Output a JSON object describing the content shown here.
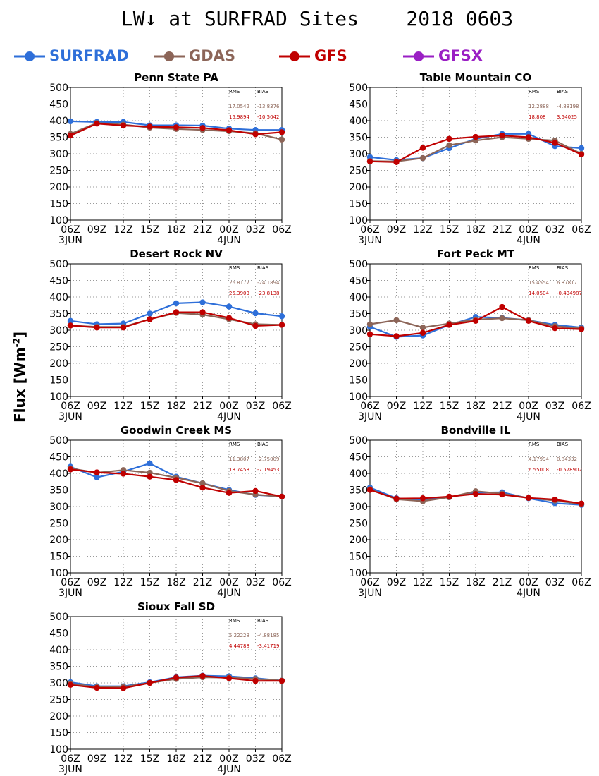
{
  "page": {
    "title": "LW↓ at SURFRAD Sites    2018 0603",
    "ylabel_main": "Flux [Wm",
    "ylabel_sup": "-2",
    "ylabel_end": "]"
  },
  "legend": [
    {
      "name": "SURFRAD",
      "color": "#2e6fd9"
    },
    {
      "name": "GDAS",
      "color": "#8c6558"
    },
    {
      "name": "GFS",
      "color": "#c00000"
    },
    {
      "name": "GFSX",
      "color": "#9a1fc4"
    }
  ],
  "stats_header": {
    "rms": "RMS",
    "bias": "BIAS"
  },
  "chart_data": [
    {
      "type": "line",
      "title": "Penn State PA",
      "x": [
        "06Z",
        "09Z",
        "12Z",
        "15Z",
        "18Z",
        "21Z",
        "00Z",
        "03Z",
        "06Z"
      ],
      "date_labels": [
        "3JUN",
        "4JUN"
      ],
      "ylim": [
        100,
        500
      ],
      "yticks": [
        100,
        150,
        200,
        250,
        300,
        350,
        400,
        450,
        500
      ],
      "grid": true,
      "series": [
        {
          "name": "SURFRAD",
          "values": [
            398,
            396,
            396,
            386,
            386,
            385,
            376,
            372,
            372
          ]
        },
        {
          "name": "GDAS",
          "values": [
            360,
            393,
            388,
            379,
            375,
            372,
            368,
            362,
            343
          ]
        },
        {
          "name": "GFS",
          "values": [
            355,
            391,
            385,
            382,
            380,
            378,
            371,
            359,
            365
          ]
        }
      ],
      "stats": [
        {
          "model": "GDAS",
          "rms": "17.0542",
          "bias": "-13.8376"
        },
        {
          "model": "GFS",
          "rms": "15.9894",
          "bias": "-10.5042"
        }
      ]
    },
    {
      "type": "line",
      "title": "Table Mountain CO",
      "x": [
        "06Z",
        "09Z",
        "12Z",
        "15Z",
        "18Z",
        "21Z",
        "00Z",
        "03Z",
        "06Z"
      ],
      "date_labels": [
        "3JUN",
        "4JUN"
      ],
      "ylim": [
        100,
        500
      ],
      "yticks": [
        100,
        150,
        200,
        250,
        300,
        350,
        400,
        450,
        500
      ],
      "grid": true,
      "series": [
        {
          "name": "SURFRAD",
          "values": [
            290,
            281,
            287,
            317,
            345,
            360,
            360,
            323,
            317
          ]
        },
        {
          "name": "GDAS",
          "values": [
            278,
            277,
            287,
            326,
            340,
            350,
            345,
            340,
            300
          ]
        },
        {
          "name": "GFS",
          "values": [
            277,
            275,
            318,
            345,
            351,
            355,
            350,
            333,
            298
          ]
        }
      ],
      "stats": [
        {
          "model": "GDAS",
          "rms": "12.2888",
          "bias": "-4.88198"
        },
        {
          "model": "GFS",
          "rms": "18.808",
          "bias": "3.54025"
        }
      ]
    },
    {
      "type": "line",
      "title": "Desert Rock NV",
      "x": [
        "06Z",
        "09Z",
        "12Z",
        "15Z",
        "18Z",
        "21Z",
        "00Z",
        "03Z",
        "06Z"
      ],
      "date_labels": [
        "3JUN",
        "4JUN"
      ],
      "ylim": [
        100,
        500
      ],
      "yticks": [
        100,
        150,
        200,
        250,
        300,
        350,
        400,
        450,
        500
      ],
      "grid": true,
      "series": [
        {
          "name": "SURFRAD",
          "values": [
            328,
            318,
            320,
            350,
            381,
            384,
            371,
            351,
            342
          ]
        },
        {
          "name": "GDAS",
          "values": [
            314,
            310,
            310,
            333,
            352,
            347,
            333,
            318,
            316
          ]
        },
        {
          "name": "GFS",
          "values": [
            314,
            308,
            308,
            333,
            354,
            354,
            337,
            313,
            316
          ]
        }
      ],
      "stats": [
        {
          "model": "GDAS",
          "rms": "26.8177",
          "bias": "-24.1894"
        },
        {
          "model": "GFS",
          "rms": "25.3903",
          "bias": "-23.8138"
        }
      ]
    },
    {
      "type": "line",
      "title": "Fort Peck MT",
      "x": [
        "06Z",
        "09Z",
        "12Z",
        "15Z",
        "18Z",
        "21Z",
        "00Z",
        "03Z",
        "06Z"
      ],
      "date_labels": [
        "3JUN",
        "4JUN"
      ],
      "ylim": [
        100,
        500
      ],
      "yticks": [
        100,
        150,
        200,
        250,
        300,
        350,
        400,
        450,
        500
      ],
      "grid": true,
      "series": [
        {
          "name": "SURFRAD",
          "values": [
            310,
            280,
            284,
            316,
            340,
            337,
            330,
            316,
            308
          ]
        },
        {
          "name": "GDAS",
          "values": [
            318,
            330,
            308,
            320,
            332,
            336,
            330,
            312,
            305
          ]
        },
        {
          "name": "GFS",
          "values": [
            288,
            282,
            292,
            316,
            328,
            370,
            328,
            306,
            303
          ]
        }
      ],
      "stats": [
        {
          "model": "GDAS",
          "rms": "15.4554",
          "bias": "6.87817"
        },
        {
          "model": "GFS",
          "rms": "14.0504",
          "bias": "-0.434987"
        }
      ]
    },
    {
      "type": "line",
      "title": "Goodwin Creek MS",
      "x": [
        "06Z",
        "09Z",
        "12Z",
        "15Z",
        "18Z",
        "21Z",
        "00Z",
        "03Z",
        "06Z"
      ],
      "date_labels": [
        "3JUN",
        "4JUN"
      ],
      "ylim": [
        100,
        500
      ],
      "yticks": [
        100,
        150,
        200,
        250,
        300,
        350,
        400,
        450,
        500
      ],
      "grid": true,
      "series": [
        {
          "name": "SURFRAD",
          "values": [
            420,
            388,
            405,
            430,
            390,
            370,
            350,
            335,
            330
          ]
        },
        {
          "name": "GDAS",
          "values": [
            415,
            402,
            410,
            402,
            387,
            370,
            347,
            336,
            330
          ]
        },
        {
          "name": "GFS",
          "values": [
            412,
            403,
            399,
            390,
            380,
            357,
            341,
            347,
            330
          ]
        }
      ],
      "stats": [
        {
          "model": "GDAS",
          "rms": "11.3807",
          "bias": "-2.75009"
        },
        {
          "model": "GFS",
          "rms": "18.7458",
          "bias": "-7.19453"
        }
      ]
    },
    {
      "type": "line",
      "title": "Bondville IL",
      "x": [
        "06Z",
        "09Z",
        "12Z",
        "15Z",
        "18Z",
        "21Z",
        "00Z",
        "03Z",
        "06Z"
      ],
      "date_labels": [
        "3JUN",
        "4JUN"
      ],
      "ylim": [
        100,
        500
      ],
      "yticks": [
        100,
        150,
        200,
        250,
        300,
        350,
        400,
        450,
        500
      ],
      "grid": true,
      "series": [
        {
          "name": "SURFRAD",
          "values": [
            357,
            325,
            320,
            328,
            342,
            343,
            325,
            310,
            305
          ]
        },
        {
          "name": "GDAS",
          "values": [
            352,
            322,
            316,
            328,
            346,
            339,
            326,
            318,
            307
          ]
        },
        {
          "name": "GFS",
          "values": [
            350,
            324,
            325,
            330,
            338,
            336,
            326,
            321,
            309
          ]
        }
      ],
      "stats": [
        {
          "model": "GDAS",
          "rms": "4.17994",
          "bias": "0.84332"
        },
        {
          "model": "GFS",
          "rms": "6.55008",
          "bias": "-0.578902"
        }
      ]
    },
    {
      "type": "line",
      "title": "Sioux Fall SD",
      "x": [
        "06Z",
        "09Z",
        "12Z",
        "15Z",
        "18Z",
        "21Z",
        "00Z",
        "03Z",
        "06Z"
      ],
      "date_labels": [
        "3JUN",
        "4JUN"
      ],
      "ylim": [
        100,
        500
      ],
      "yticks": [
        100,
        150,
        200,
        250,
        300,
        350,
        400,
        450,
        500
      ],
      "grid": true,
      "series": [
        {
          "name": "SURFRAD",
          "values": [
            302,
            290,
            290,
            302,
            317,
            322,
            320,
            314,
            307
          ]
        },
        {
          "name": "GDAS",
          "values": [
            298,
            287,
            288,
            300,
            312,
            317,
            316,
            312,
            307
          ]
        },
        {
          "name": "GFS",
          "values": [
            294,
            285,
            284,
            300,
            316,
            321,
            314,
            306,
            306
          ]
        }
      ],
      "stats": [
        {
          "model": "GDAS",
          "rms": "5.22228",
          "bias": "-4.88185"
        },
        {
          "model": "GFS",
          "rms": "4.44788",
          "bias": "-3.41719"
        }
      ]
    }
  ]
}
